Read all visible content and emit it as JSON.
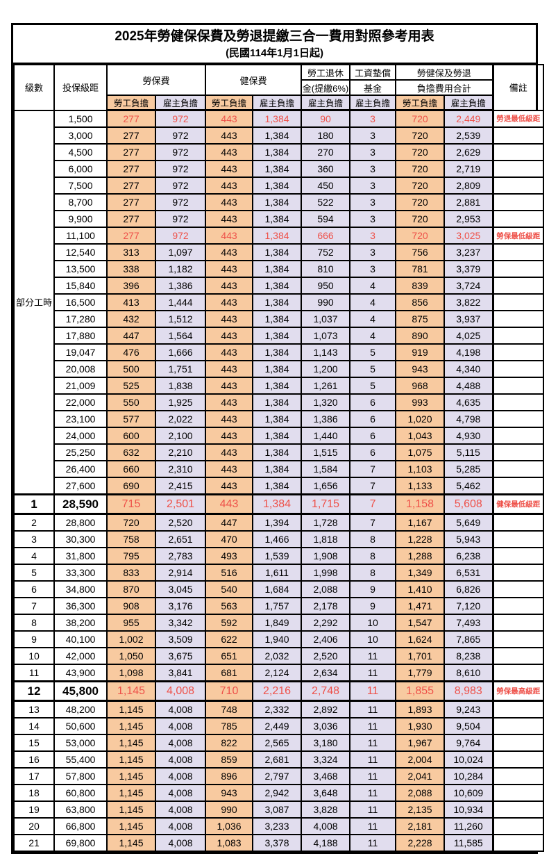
{
  "title": "2025年勞健保保費及勞退提繳三合一費用對照參考用表",
  "subtitle": "(民國114年1月1日起)",
  "colors": {
    "employee_bg": "#F8CAA0",
    "employer_bg": "#E1DDEE",
    "highlight_red": "#EE5149"
  },
  "header": {
    "level": "級數",
    "bracket": "投保級距",
    "labor_insurance": "勞保費",
    "health_insurance": "健保費",
    "pension_line1": "勞工退休",
    "pension_line2": "金(提繳6%)",
    "wage_fund_line1": "工資墊償",
    "wage_fund_line2": "基金",
    "total_line1": "勞健保及勞退",
    "total_line2": "負擔費用合計",
    "remark": "備註",
    "employee": "勞工負擔",
    "employer": "雇主負擔"
  },
  "group": {
    "label": "部分工時",
    "row_span": 23
  },
  "rows": [
    [
      "",
      "1,500",
      "277",
      "972",
      "443",
      "1,384",
      "90",
      "3",
      "720",
      "2,449",
      "勞退最低級距",
      "r"
    ],
    [
      "",
      "3,000",
      "277",
      "972",
      "443",
      "1,384",
      "180",
      "3",
      "720",
      "2,539",
      "",
      ""
    ],
    [
      "",
      "4,500",
      "277",
      "972",
      "443",
      "1,384",
      "270",
      "3",
      "720",
      "2,629",
      "",
      ""
    ],
    [
      "",
      "6,000",
      "277",
      "972",
      "443",
      "1,384",
      "360",
      "3",
      "720",
      "2,719",
      "",
      ""
    ],
    [
      "",
      "7,500",
      "277",
      "972",
      "443",
      "1,384",
      "450",
      "3",
      "720",
      "2,809",
      "",
      ""
    ],
    [
      "",
      "8,700",
      "277",
      "972",
      "443",
      "1,384",
      "522",
      "3",
      "720",
      "2,881",
      "",
      ""
    ],
    [
      "",
      "9,900",
      "277",
      "972",
      "443",
      "1,384",
      "594",
      "3",
      "720",
      "2,953",
      "",
      ""
    ],
    [
      "",
      "11,100",
      "277",
      "972",
      "443",
      "1,384",
      "666",
      "3",
      "720",
      "3,025",
      "勞保最低級距",
      "r"
    ],
    [
      "",
      "12,540",
      "313",
      "1,097",
      "443",
      "1,384",
      "752",
      "3",
      "756",
      "3,237",
      "",
      ""
    ],
    [
      "",
      "13,500",
      "338",
      "1,182",
      "443",
      "1,384",
      "810",
      "3",
      "781",
      "3,379",
      "",
      ""
    ],
    [
      "",
      "15,840",
      "396",
      "1,386",
      "443",
      "1,384",
      "950",
      "4",
      "839",
      "3,724",
      "",
      ""
    ],
    [
      "",
      "16,500",
      "413",
      "1,444",
      "443",
      "1,384",
      "990",
      "4",
      "856",
      "3,822",
      "",
      ""
    ],
    [
      "",
      "17,280",
      "432",
      "1,512",
      "443",
      "1,384",
      "1,037",
      "4",
      "875",
      "3,937",
      "",
      ""
    ],
    [
      "",
      "17,880",
      "447",
      "1,564",
      "443",
      "1,384",
      "1,073",
      "4",
      "890",
      "4,025",
      "",
      ""
    ],
    [
      "",
      "19,047",
      "476",
      "1,666",
      "443",
      "1,384",
      "1,143",
      "5",
      "919",
      "4,198",
      "",
      ""
    ],
    [
      "",
      "20,008",
      "500",
      "1,751",
      "443",
      "1,384",
      "1,200",
      "5",
      "943",
      "4,340",
      "",
      ""
    ],
    [
      "",
      "21,009",
      "525",
      "1,838",
      "443",
      "1,384",
      "1,261",
      "5",
      "968",
      "4,488",
      "",
      ""
    ],
    [
      "",
      "22,000",
      "550",
      "1,925",
      "443",
      "1,384",
      "1,320",
      "6",
      "993",
      "4,635",
      "",
      ""
    ],
    [
      "",
      "23,100",
      "577",
      "2,022",
      "443",
      "1,384",
      "1,386",
      "6",
      "1,020",
      "4,798",
      "",
      ""
    ],
    [
      "",
      "24,000",
      "600",
      "2,100",
      "443",
      "1,384",
      "1,440",
      "6",
      "1,043",
      "4,930",
      "",
      ""
    ],
    [
      "",
      "25,250",
      "632",
      "2,210",
      "443",
      "1,384",
      "1,515",
      "6",
      "1,075",
      "5,115",
      "",
      ""
    ],
    [
      "",
      "26,400",
      "660",
      "2,310",
      "443",
      "1,384",
      "1,584",
      "7",
      "1,103",
      "5,285",
      "",
      ""
    ],
    [
      "",
      "27,600",
      "690",
      "2,415",
      "443",
      "1,384",
      "1,656",
      "7",
      "1,133",
      "5,462",
      "",
      ""
    ],
    [
      "1",
      "28,590",
      "715",
      "2,501",
      "443",
      "1,384",
      "1,715",
      "7",
      "1,158",
      "5,608",
      "健保最低級距",
      "rb"
    ],
    [
      "2",
      "28,800",
      "720",
      "2,520",
      "447",
      "1,394",
      "1,728",
      "7",
      "1,167",
      "5,649",
      "",
      ""
    ],
    [
      "3",
      "30,300",
      "758",
      "2,651",
      "470",
      "1,466",
      "1,818",
      "8",
      "1,228",
      "5,943",
      "",
      ""
    ],
    [
      "4",
      "31,800",
      "795",
      "2,783",
      "493",
      "1,539",
      "1,908",
      "8",
      "1,288",
      "6,238",
      "",
      ""
    ],
    [
      "5",
      "33,300",
      "833",
      "2,914",
      "516",
      "1,611",
      "1,998",
      "8",
      "1,349",
      "6,531",
      "",
      ""
    ],
    [
      "6",
      "34,800",
      "870",
      "3,045",
      "540",
      "1,684",
      "2,088",
      "9",
      "1,410",
      "6,826",
      "",
      ""
    ],
    [
      "7",
      "36,300",
      "908",
      "3,176",
      "563",
      "1,757",
      "2,178",
      "9",
      "1,471",
      "7,120",
      "",
      ""
    ],
    [
      "8",
      "38,200",
      "955",
      "3,342",
      "592",
      "1,849",
      "2,292",
      "10",
      "1,547",
      "7,493",
      "",
      ""
    ],
    [
      "9",
      "40,100",
      "1,002",
      "3,509",
      "622",
      "1,940",
      "2,406",
      "10",
      "1,624",
      "7,865",
      "",
      ""
    ],
    [
      "10",
      "42,000",
      "1,050",
      "3,675",
      "651",
      "2,032",
      "2,520",
      "11",
      "1,701",
      "8,238",
      "",
      ""
    ],
    [
      "11",
      "43,900",
      "1,098",
      "3,841",
      "681",
      "2,124",
      "2,634",
      "11",
      "1,779",
      "8,610",
      "",
      ""
    ],
    [
      "12",
      "45,800",
      "1,145",
      "4,008",
      "710",
      "2,216",
      "2,748",
      "11",
      "1,855",
      "8,983",
      "勞保最高級距",
      "rb"
    ],
    [
      "13",
      "48,200",
      "1,145",
      "4,008",
      "748",
      "2,332",
      "2,892",
      "11",
      "1,893",
      "9,243",
      "",
      ""
    ],
    [
      "14",
      "50,600",
      "1,145",
      "4,008",
      "785",
      "2,449",
      "3,036",
      "11",
      "1,930",
      "9,504",
      "",
      ""
    ],
    [
      "15",
      "53,000",
      "1,145",
      "4,008",
      "822",
      "2,565",
      "3,180",
      "11",
      "1,967",
      "9,764",
      "",
      ""
    ],
    [
      "16",
      "55,400",
      "1,145",
      "4,008",
      "859",
      "2,681",
      "3,324",
      "11",
      "2,004",
      "10,024",
      "",
      ""
    ],
    [
      "17",
      "57,800",
      "1,145",
      "4,008",
      "896",
      "2,797",
      "3,468",
      "11",
      "2,041",
      "10,284",
      "",
      ""
    ],
    [
      "18",
      "60,800",
      "1,145",
      "4,008",
      "943",
      "2,942",
      "3,648",
      "11",
      "2,088",
      "10,609",
      "",
      ""
    ],
    [
      "19",
      "63,800",
      "1,145",
      "4,008",
      "990",
      "3,087",
      "3,828",
      "11",
      "2,135",
      "10,934",
      "",
      ""
    ],
    [
      "20",
      "66,800",
      "1,145",
      "4,008",
      "1,036",
      "3,233",
      "4,008",
      "11",
      "2,181",
      "11,260",
      "",
      ""
    ],
    [
      "21",
      "69,800",
      "1,145",
      "4,008",
      "1,083",
      "3,378",
      "4,188",
      "11",
      "2,228",
      "11,585",
      "",
      ""
    ]
  ]
}
